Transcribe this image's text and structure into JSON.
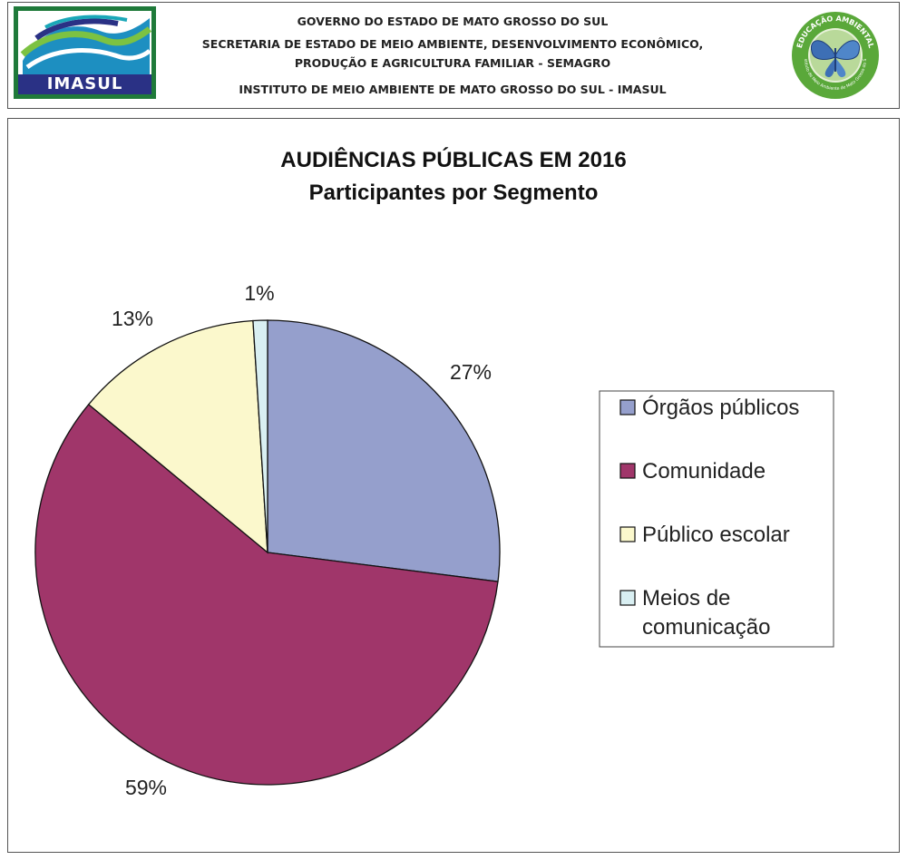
{
  "header": {
    "left_logo_text": "IMASUL",
    "lines": [
      "GOVERNO DO ESTADO DE MATO GROSSO DO SUL",
      "SECRETARIA DE ESTADO DE MEIO AMBIENTE, DESENVOLVIMENTO ECONÔMICO,",
      "PRODUÇÃO E AGRICULTURA FAMILIAR - SEMAGRO",
      "INSTITUTO DE MEIO AMBIENTE DE MATO GROSSO DO SUL - IMASUL"
    ],
    "right_logo_top_text": "EDUCAÇÃO AMBIENTAL",
    "right_logo_bottom_text": "Instituto de Meio Ambiente de Mato Grosso do Sul"
  },
  "chart_data": {
    "type": "pie",
    "title": "AUDIÊNCIAS PÚBLICAS EM 2016",
    "subtitle": "Participantes por Segmento",
    "categories": [
      "Órgãos públicos",
      "Comunidade",
      "Público escolar",
      "Meios de comunicação"
    ],
    "legend_lines": [
      [
        "Órgãos públicos"
      ],
      [
        "Comunidade"
      ],
      [
        "Público escolar"
      ],
      [
        "Meios de",
        "comunicação"
      ]
    ],
    "values": [
      27,
      59,
      13,
      1
    ],
    "labels": [
      "27%",
      "59%",
      "13%",
      "1%"
    ],
    "unit": "%",
    "colors": [
      "#959fcc",
      "#a0366a",
      "#fbf8cc",
      "#d9eff2"
    ],
    "legend_position": "right"
  }
}
